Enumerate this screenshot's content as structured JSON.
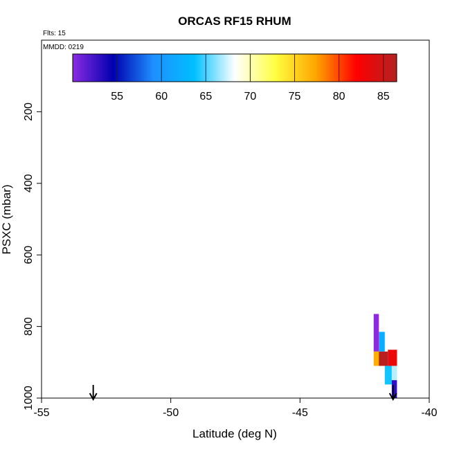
{
  "chart_data": {
    "type": "heatmap",
    "title": "ORCAS RF15 RHUM",
    "flights_label": "Flts: 15",
    "date_label": "MMDD: 0219",
    "xlabel": "Latitude (deg N)",
    "ylabel": "PSXC (mbar)",
    "xlim": [
      -55,
      -40
    ],
    "ylim": [
      1000,
      0
    ],
    "x_ticks": [
      -55,
      -50,
      -45,
      -40
    ],
    "y_ticks": [
      200,
      400,
      600,
      800,
      1000
    ],
    "grid": false,
    "colorbar": {
      "range": [
        50,
        86.5
      ],
      "ticks": [
        55,
        60,
        65,
        70,
        75,
        80,
        85
      ],
      "stops": [
        "#8a2be2",
        "#0000b0",
        "#1e90ff",
        "#00bfff",
        "#ffffff",
        "#ffff40",
        "#ffa500",
        "#ff0000",
        "#b22222"
      ]
    },
    "cells": [
      {
        "lat0": -42.15,
        "lat1": -41.95,
        "p0": 765,
        "p1": 870,
        "value": 50
      },
      {
        "lat0": -41.95,
        "lat1": -41.72,
        "p0": 815,
        "p1": 870,
        "value": 62
      },
      {
        "lat0": -42.15,
        "lat1": -41.95,
        "p0": 870,
        "p1": 910,
        "value": 77
      },
      {
        "lat0": -41.95,
        "lat1": -41.6,
        "p0": 870,
        "p1": 910,
        "value": 86
      },
      {
        "lat0": -41.6,
        "lat1": -41.25,
        "p0": 865,
        "p1": 910,
        "value": 83
      },
      {
        "lat0": -41.72,
        "lat1": -41.45,
        "p0": 910,
        "p1": 962,
        "value": 64
      },
      {
        "lat0": -41.45,
        "lat1": -41.25,
        "p0": 910,
        "p1": 950,
        "value": 67
      },
      {
        "lat0": -41.45,
        "lat1": -41.25,
        "p0": 950,
        "p1": 1000,
        "value": 53
      }
    ],
    "arrows": [
      {
        "lat": -53.0
      },
      {
        "lat": -41.4
      }
    ]
  }
}
